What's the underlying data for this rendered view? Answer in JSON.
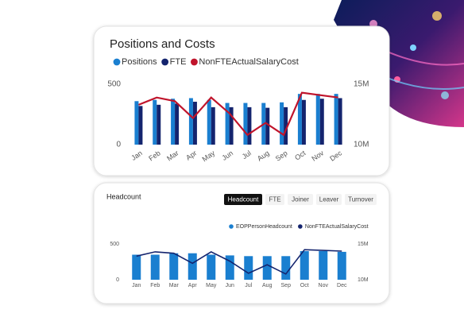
{
  "chart_data": [
    {
      "type": "combo",
      "title": "Positions and Costs",
      "categories": [
        "Jan",
        "Feb",
        "Mar",
        "Apr",
        "May",
        "Jun",
        "Jul",
        "Aug",
        "Sep",
        "Oct",
        "Nov",
        "Dec"
      ],
      "series": [
        {
          "name": "Positions",
          "color": "#1a7fd0",
          "type": "bar",
          "values": [
            360,
            370,
            380,
            385,
            370,
            345,
            345,
            345,
            350,
            420,
            420,
            420
          ]
        },
        {
          "name": "FTE",
          "color": "#14246e",
          "type": "bar",
          "values": [
            320,
            330,
            340,
            355,
            310,
            310,
            310,
            305,
            310,
            370,
            380,
            385
          ]
        },
        {
          "name": "NonFTEActualSalaryCost",
          "color": "#c0142b",
          "type": "line",
          "axis": "y2",
          "values": [
            13300000,
            13900000,
            13600000,
            12200000,
            13900000,
            12600000,
            10800000,
            11800000,
            10800000,
            14300000,
            14100000,
            13900000
          ]
        }
      ],
      "ylim": [
        0,
        500
      ],
      "yticks": [
        0,
        500
      ],
      "y2lim": [
        10000000,
        15000000
      ],
      "y2ticks": [
        {
          "value": 10000000,
          "label": "10M"
        },
        {
          "value": 15000000,
          "label": "15M"
        }
      ]
    },
    {
      "type": "combo",
      "title": "Headcount",
      "categories": [
        "Jan",
        "Feb",
        "Mar",
        "Apr",
        "May",
        "Jun",
        "Jul",
        "Aug",
        "Sep",
        "Oct",
        "Nov",
        "Dec"
      ],
      "series": [
        {
          "name": "EOPPersonHeadcount",
          "color": "#1a7fd0",
          "type": "bar",
          "values": [
            350,
            350,
            370,
            370,
            350,
            340,
            330,
            330,
            330,
            400,
            400,
            390
          ]
        },
        {
          "name": "NonFTEActualSalaryCost",
          "color": "#14246e",
          "type": "line",
          "axis": "y2",
          "values": [
            13300000,
            13900000,
            13700000,
            12300000,
            13900000,
            12600000,
            10900000,
            12100000,
            10800000,
            14200000,
            14100000,
            14000000
          ]
        }
      ],
      "ylim": [
        0,
        500
      ],
      "yticks": [
        0,
        500
      ],
      "y2lim": [
        10000000,
        15000000
      ],
      "y2ticks": [
        {
          "value": 10000000,
          "label": "10M"
        },
        {
          "value": 15000000,
          "label": "15M"
        }
      ]
    }
  ],
  "tabs": [
    "Headcount",
    "FTE",
    "Joiner",
    "Leaver",
    "Turnover"
  ],
  "active_tab": 0
}
